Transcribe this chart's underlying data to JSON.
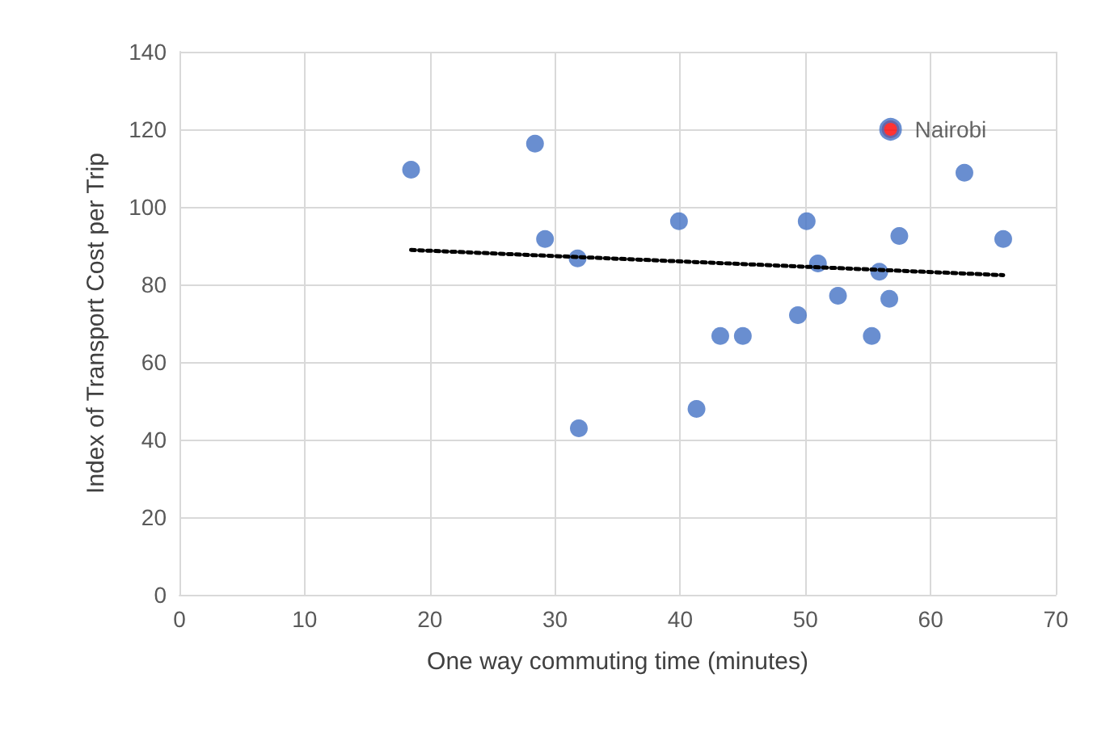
{
  "chart_data": {
    "type": "scatter",
    "xlabel": "One way commuting time (minutes)",
    "ylabel": "Index of Transport Cost per Trip",
    "xlim": [
      0,
      70
    ],
    "xticks": [
      0,
      10,
      20,
      30,
      40,
      50,
      60,
      70
    ],
    "ylim": [
      0,
      140
    ],
    "yticks": [
      0,
      20,
      40,
      60,
      80,
      100,
      120,
      140
    ],
    "grid": true,
    "legend": false,
    "marker": "circle",
    "series": [
      {
        "color": "#4472c4",
        "x": [
          18.5,
          28.4,
          29.2,
          31.8,
          31.9,
          39.9,
          41.3,
          43.2,
          45.0,
          49.4,
          50.1,
          51.0,
          52.6,
          55.3,
          55.9,
          56.7,
          57.5,
          62.7,
          65.8
        ],
        "values": [
          109.6,
          116.3,
          91.7,
          86.7,
          42.9,
          96.3,
          47.9,
          66.7,
          66.7,
          72.1,
          96.3,
          85.4,
          77.1,
          66.7,
          83.3,
          76.3,
          92.5,
          108.8,
          91.7
        ]
      },
      {
        "name": "Nairobi",
        "color": "#ff0000",
        "x": [
          56.8
        ],
        "values": [
          120
        ]
      },
      {
        "type": "line",
        "line_style": "dotted",
        "marker": "none",
        "color": "#000000",
        "x": [
          18.5,
          65.8
        ],
        "values": [
          88.9,
          82.4
        ]
      }
    ]
  }
}
